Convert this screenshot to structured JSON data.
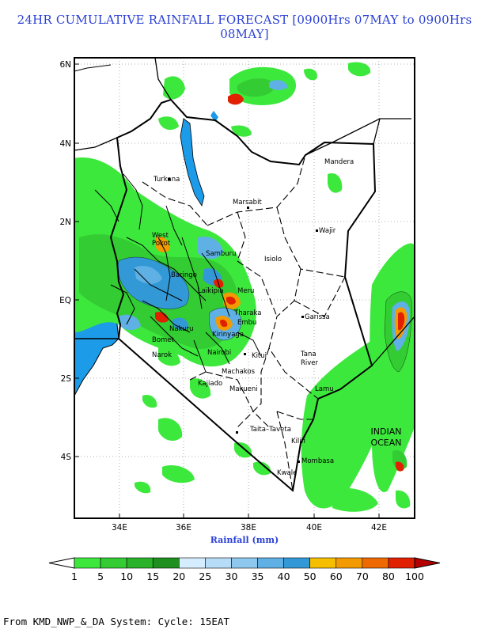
{
  "title": "24HR CUMULATIVE RAINFALL FORECAST [0900Hrs 07MAY to 0900Hrs 08MAY]",
  "axes": {
    "x_ticks": [
      "34E",
      "36E",
      "38E",
      "40E",
      "42E"
    ],
    "y_ticks": [
      "6N",
      "4N",
      "2N",
      "EQ",
      "2S",
      "4S"
    ],
    "xlabel": "Rainfall (mm)"
  },
  "places": {
    "turkana": "Turkana",
    "marsabit": "Marsabit",
    "mandera": "Mandera",
    "wajir": "Wajir",
    "isiolo": "Isiolo",
    "garissa": "Garissa",
    "tana_river": [
      "Tana",
      "River"
    ],
    "lamu": "Lamu",
    "taita_taveta": "Taita–Taveta",
    "kilifi": "Kilifi",
    "mombasa": "Mombasa",
    "kwale": "Kwale",
    "kitui": "Kitui",
    "machakos": "Machakos",
    "makueni": "Makueni",
    "kajiado": "Kajiado",
    "nairobi": "Nairobi",
    "narok": "Narok",
    "bomet": "Bomet",
    "nakuru": "Nakuru",
    "embu": "Embu",
    "tharaka": "Tharaka",
    "kirinyaga": "Kirinyaga",
    "meru": "Meru",
    "laikipia": "Laikipia",
    "samburu": "Samburu",
    "baringo": "Baringo",
    "west_pokot": [
      "West",
      "Pokot"
    ]
  },
  "ocean_label": [
    "INDIAN",
    "OCEAN"
  ],
  "colorbar": {
    "labels": [
      "1",
      "5",
      "10",
      "15",
      "20",
      "25",
      "30",
      "35",
      "40",
      "50",
      "60",
      "70",
      "80",
      "100"
    ],
    "colors": [
      "#3de83d",
      "#33cc33",
      "#2ab32a",
      "#1f8f1f",
      "#d6ecff",
      "#b7dcf7",
      "#8fc8ee",
      "#5fb0e4",
      "#3399d6",
      "#f5bf00",
      "#f39a00",
      "#ee6a00",
      "#e02000",
      "#b40000"
    ]
  },
  "footer": "From KMD_NWP_&_DA System: Cycle: 15EAT"
}
